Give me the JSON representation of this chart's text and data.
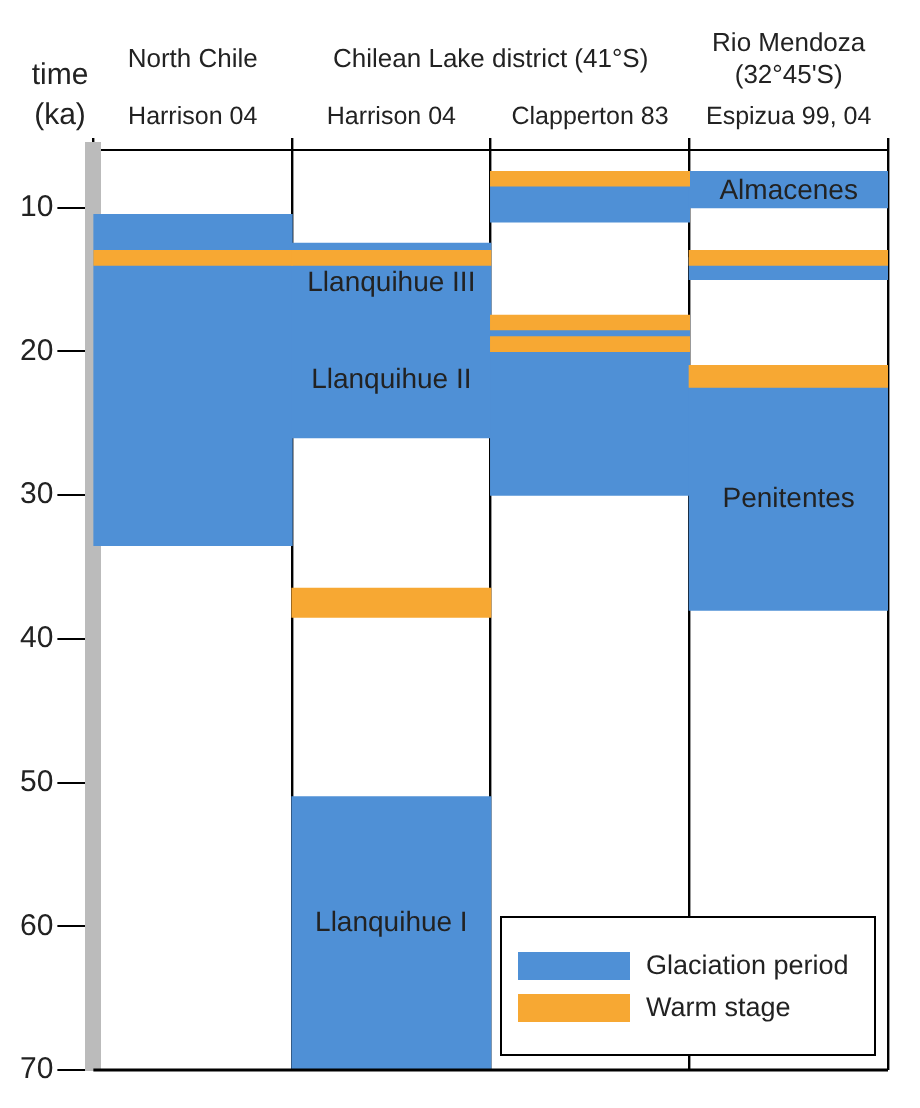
{
  "chart_data": {
    "type": "bar",
    "ylabel": "time (ka)",
    "categories": [
      "Harrison 04",
      "Harrison 04",
      "Clapperton 83",
      "Espizua 99, 04"
    ],
    "ylim": [
      70,
      6
    ],
    "yticks": [
      10,
      20,
      30,
      40,
      50,
      60,
      70
    ],
    "grid": "x",
    "legend": "bottom right",
    "series": [
      {
        "name": "Glaciation period",
        "color": "#4f90d6",
        "base": [
          10.5,
          12.5,
          8.5,
          7.5
        ],
        "values": [
          23,
          13.5,
          2.5,
          2.5
        ]
      },
      {
        "color": "#4f90d6",
        "base": [
          null,
          51,
          18,
          13.5
        ],
        "values": [
          null,
          19,
          12,
          1.5
        ]
      },
      {
        "color": "#4f90d6",
        "base": [
          null,
          null,
          null,
          22.5
        ],
        "values": [
          null,
          null,
          null,
          15.5
        ]
      },
      {
        "name": "Warm stage",
        "color": "#f7a833",
        "base": [
          13,
          13,
          7.5,
          13
        ],
        "values": [
          1,
          1,
          1,
          1
        ]
      },
      {
        "color": "#f7a833",
        "base": [
          null,
          36.5,
          17.5,
          21
        ],
        "values": [
          null,
          2,
          1,
          1.5
        ]
      },
      {
        "color": "#f7a833",
        "base": [
          null,
          null,
          19,
          null
        ],
        "values": [
          null,
          null,
          1,
          null
        ]
      }
    ],
    "annotations": [
      "North Chile",
      "Chilean Lake district (41°S)",
      "Rio Mendoza (32°45'S)",
      "Llanquihue III",
      "Llanquihue II",
      "Llanquihue I",
      "Almacenes",
      "Penitentes"
    ]
  }
}
